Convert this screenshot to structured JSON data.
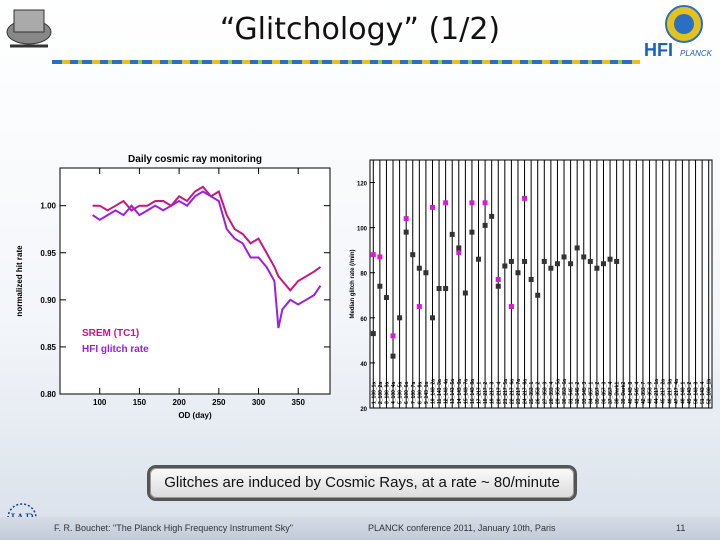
{
  "slide": {
    "title": "“Glitchology” (1/2)",
    "caption": "Glitches are induced by Cosmic Rays, at a rate ~ 80/minute",
    "footer_left": "F. R. Bouchet: \"The Planck High Frequency Instrument Sky\"",
    "footer_center": "PLANCK conference 2011, January 10th, Paris",
    "page_number": "11",
    "logo_text": "HFI",
    "logo_sub": "PLANCK",
    "iap_text": "IAP"
  },
  "chart_data": [
    {
      "type": "line",
      "title": "Daily cosmic ray monitoring",
      "xlabel": "OD (day)",
      "ylabel": "normalized hit rate",
      "xlim": [
        50,
        390
      ],
      "ylim": [
        0.8,
        1.04
      ],
      "xticks": [
        100,
        150,
        200,
        250,
        300,
        350
      ],
      "yticks": [
        0.8,
        0.85,
        0.9,
        0.95,
        1.0
      ],
      "legend_position": "bottom-left",
      "series": [
        {
          "name": "SREM (TC1)",
          "color": "#c8177a",
          "x": [
            91,
            100,
            110,
            120,
            130,
            140,
            150,
            160,
            170,
            180,
            190,
            200,
            210,
            220,
            230,
            240,
            250,
            260,
            270,
            280,
            290,
            300,
            310,
            320,
            325,
            330,
            340,
            350,
            360,
            370,
            378
          ],
          "y": [
            1.0,
            1.0,
            0.995,
            1.0,
            1.005,
            0.995,
            1.0,
            1.0,
            1.005,
            1.005,
            1.0,
            1.01,
            1.005,
            1.015,
            1.02,
            1.01,
            1.015,
            0.99,
            0.975,
            0.97,
            0.96,
            0.965,
            0.95,
            0.935,
            0.925,
            0.92,
            0.91,
            0.92,
            0.925,
            0.93,
            0.935
          ]
        },
        {
          "name": "HFI glitch rate",
          "color": "#9b1fe0",
          "x": [
            91,
            100,
            110,
            120,
            130,
            140,
            150,
            160,
            170,
            180,
            190,
            200,
            210,
            220,
            230,
            240,
            250,
            260,
            270,
            280,
            290,
            300,
            310,
            320,
            325,
            330,
            340,
            350,
            360,
            370,
            378
          ],
          "y": [
            0.99,
            0.985,
            0.99,
            0.995,
            0.99,
            1.0,
            0.99,
            0.995,
            1.0,
            0.995,
            1.0,
            1.005,
            1.0,
            1.01,
            1.015,
            1.01,
            1.005,
            0.975,
            0.965,
            0.96,
            0.945,
            0.945,
            0.935,
            0.92,
            0.87,
            0.89,
            0.9,
            0.895,
            0.9,
            0.905,
            0.915
          ]
        }
      ]
    },
    {
      "type": "scatter",
      "xlabel": "",
      "ylabel": "Median glitch rate (/min)",
      "ylim": [
        20,
        130
      ],
      "yticks": [
        20,
        40,
        60,
        80,
        100,
        120
      ],
      "categories": [
        "1_100_1a",
        "2_100_2a",
        "3_100_3a",
        "4_100_4a",
        "5_100_5a",
        "6_100_6a",
        "7_100_7a",
        "8_100_8a",
        "9_143_1a",
        "10_143_2a",
        "11_143_3a",
        "12_143_4a",
        "13_143_5a",
        "14_143_6a",
        "15_143_7a",
        "16_143_8a",
        "17_217_1",
        "18_217_2",
        "19_217_3",
        "20_217_4",
        "21_217_5a",
        "22_217_6a",
        "23_217_7a",
        "24_217_8a",
        "25_353_1",
        "26_353_2",
        "27_353_3",
        "28_353_4",
        "29_353_5a",
        "30_353_6a",
        "31_545_1",
        "32_545_2",
        "33_545_3",
        "34_857_1",
        "35_857_2",
        "36_857_3",
        "37_857_4",
        "38_Dark1",
        "39_Dark2",
        "40_143_8",
        "41_545_4",
        "42_353_7",
        "43_353_8",
        "44_217_1a",
        "45_217_2a",
        "46_217_3a",
        "47_217_4a",
        "48_143_1",
        "49_143_2",
        "50_143_3",
        "51_143_4",
        "52_100_1b"
      ],
      "series": [
        {
          "name": "",
          "color": "#d81ad8",
          "values": [
            88,
            87,
            null,
            52,
            null,
            104,
            null,
            65,
            null,
            109,
            null,
            111,
            null,
            89,
            null,
            111,
            null,
            111,
            null,
            77,
            null,
            65,
            null,
            113,
            null,
            null,
            null,
            null,
            null,
            null,
            null,
            null,
            null,
            null,
            null,
            null,
            null,
            null,
            null,
            null,
            null,
            null,
            null,
            null,
            null,
            null,
            null,
            null,
            null,
            null,
            null,
            null
          ]
        },
        {
          "name": "",
          "color": "#333333",
          "values": [
            53,
            74,
            69,
            43,
            60,
            98,
            88,
            82,
            80,
            60,
            73,
            73,
            97,
            91,
            71,
            98,
            86,
            101,
            105,
            74,
            83,
            85,
            80,
            85,
            77,
            70,
            85,
            82,
            84,
            87,
            84,
            91,
            87,
            85,
            82,
            84,
            86,
            85,
            null,
            null,
            null,
            null,
            null,
            null,
            null,
            null,
            null,
            null,
            null,
            null,
            null,
            null
          ]
        }
      ]
    }
  ]
}
